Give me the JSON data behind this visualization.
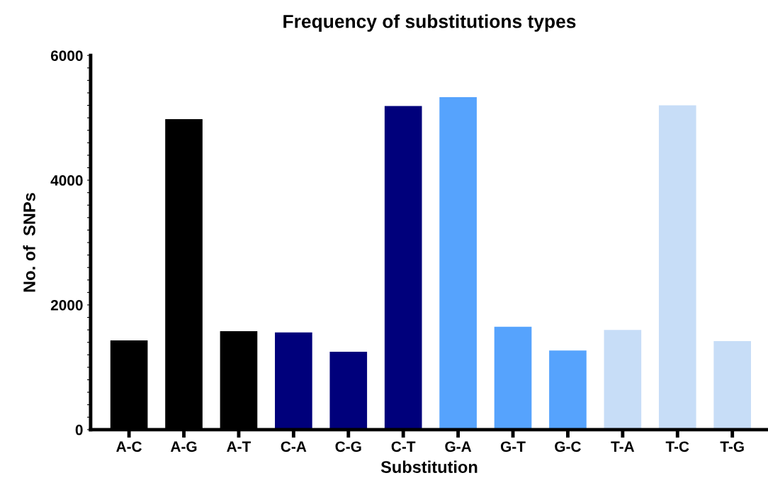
{
  "chart_data": {
    "type": "bar",
    "title": "Frequency of substitutions types",
    "xlabel": "Substitution",
    "ylabel": "No. of  SNPs",
    "categories": [
      "A-C",
      "A-G",
      "A-T",
      "C-A",
      "C-G",
      "C-T",
      "G-A",
      "G-T",
      "G-C",
      "T-A",
      "T-C",
      "T-G"
    ],
    "values": [
      1430,
      4980,
      1580,
      1560,
      1250,
      5190,
      5330,
      1650,
      1270,
      1600,
      5200,
      1420
    ],
    "colors": [
      "#000000",
      "#000000",
      "#000000",
      "#00007b",
      "#00007b",
      "#00007b",
      "#56a3fd",
      "#56a3fd",
      "#56a3fd",
      "#c7ddf7",
      "#c7ddf7",
      "#c7ddf7"
    ],
    "ylim": [
      0,
      6000
    ],
    "yticks": [
      0,
      {
        "value": 200,
        "label": null
      },
      {
        "value": 400,
        "label": null
      },
      {
        "value": 600,
        "label": null
      },
      {
        "value": 800,
        "label": null
      },
      {
        "value": 1000,
        "label": null
      },
      {
        "value": 1200,
        "label": null
      },
      {
        "value": 1400,
        "label": null
      },
      {
        "value": 1600,
        "label": null
      },
      {
        "value": 1800,
        "label": null
      },
      2000,
      {
        "value": 2200,
        "label": null
      },
      {
        "value": 2400,
        "label": null
      },
      {
        "value": 2600,
        "label": null
      },
      {
        "value": 2800,
        "label": null
      },
      {
        "value": 3000,
        "label": null
      },
      {
        "value": 3200,
        "label": null
      },
      {
        "value": 3400,
        "label": null
      },
      {
        "value": 3600,
        "label": null
      },
      {
        "value": 3800,
        "label": null
      },
      4000,
      {
        "value": 4200,
        "label": null
      },
      {
        "value": 4400,
        "label": null
      },
      {
        "value": 4600,
        "label": null
      },
      {
        "value": 4800,
        "label": null
      },
      {
        "value": 5000,
        "label": null
      },
      {
        "value": 5200,
        "label": null
      },
      {
        "value": 5400,
        "label": null
      },
      {
        "value": 5600,
        "label": null
      },
      {
        "value": 5800,
        "label": null
      },
      6000
    ],
    "grid": false,
    "legend": false
  }
}
